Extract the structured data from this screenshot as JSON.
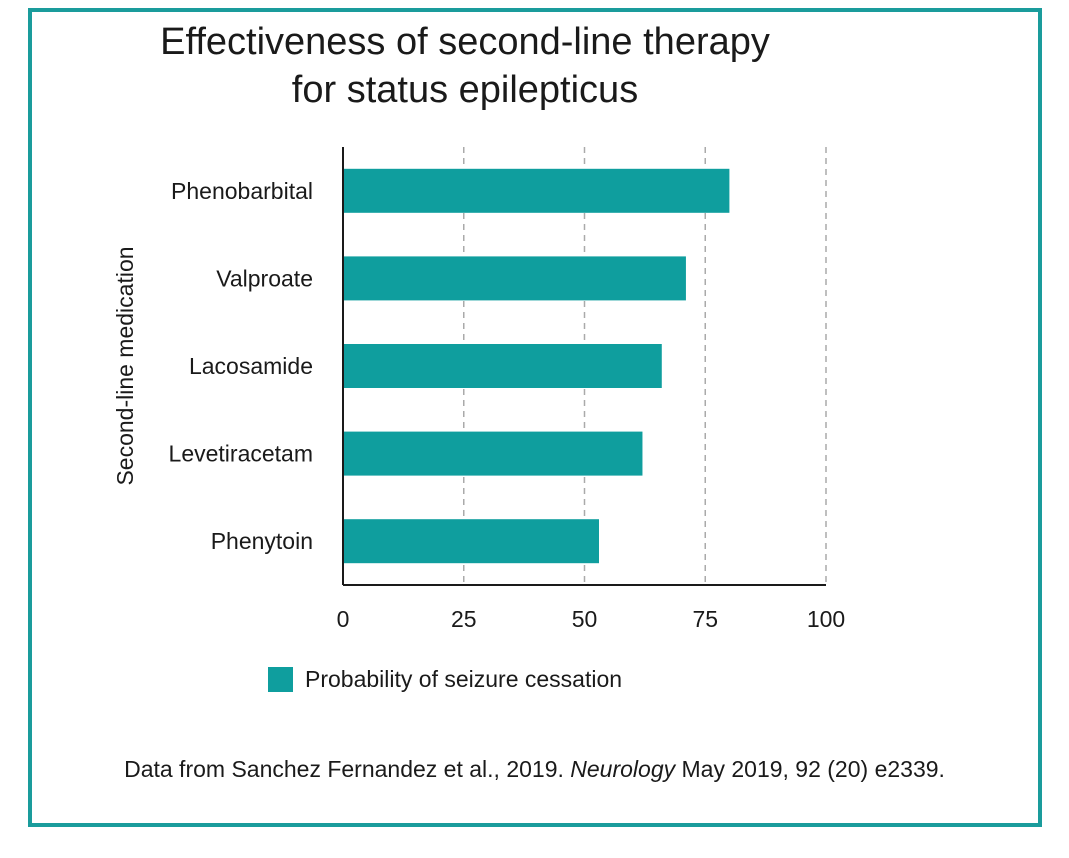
{
  "chart_data": {
    "type": "bar",
    "orientation": "horizontal",
    "title_lines": [
      "Effectiveness of second-line therapy",
      "for status epilepticus"
    ],
    "xlabel": "",
    "ylabel": "Second-line medication",
    "categories": [
      "Phenobarbital",
      "Valproate",
      "Lacosamide",
      "Levetiracetam",
      "Phenytoin"
    ],
    "series": [
      {
        "name": "Probability of seizure cessation",
        "values": [
          80,
          71,
          66,
          62,
          53
        ]
      }
    ],
    "xlim": [
      0,
      100
    ],
    "xticks": [
      "0",
      "25",
      "50",
      "75",
      "100"
    ],
    "grid": "vertical dashed",
    "legend_position": "bottom",
    "color": "#0f9e9e"
  },
  "source": {
    "prefix": "Data from Sanchez Fernandez et al.,  2019. ",
    "journal": "Neurology",
    "suffix": " May 2019, 92 (20) e2339."
  },
  "colors": {
    "border": "#1a9c9c",
    "bar": "#0f9e9e"
  }
}
